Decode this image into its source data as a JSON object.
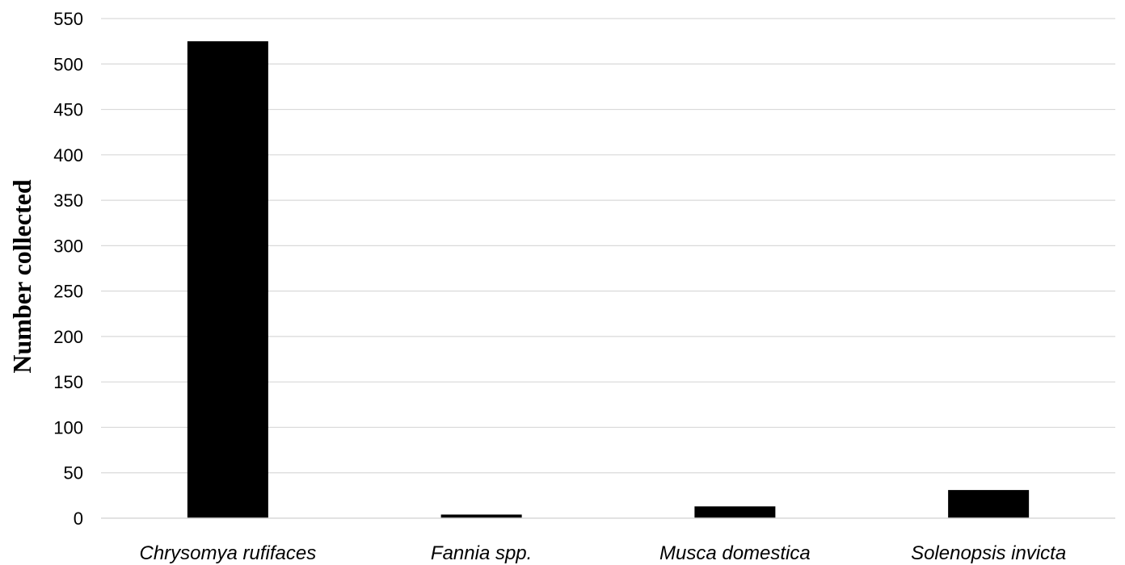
{
  "chart_data": {
    "type": "bar",
    "title": "",
    "xlabel": "",
    "ylabel": "Number collected",
    "categories": [
      "Chrysomya rufifaces",
      "Fannia spp.",
      "Musca domestica",
      "Solenopsis invicta"
    ],
    "values": [
      525,
      4,
      13,
      31
    ],
    "ylim": [
      0,
      550
    ],
    "yticks": [
      "0",
      "50",
      "100",
      "150",
      "200",
      "250",
      "300",
      "350",
      "400",
      "450",
      "500",
      "550"
    ],
    "grid": true,
    "legend": "none",
    "bar_color": "#000000",
    "grid_color": "#d9d9d9"
  }
}
